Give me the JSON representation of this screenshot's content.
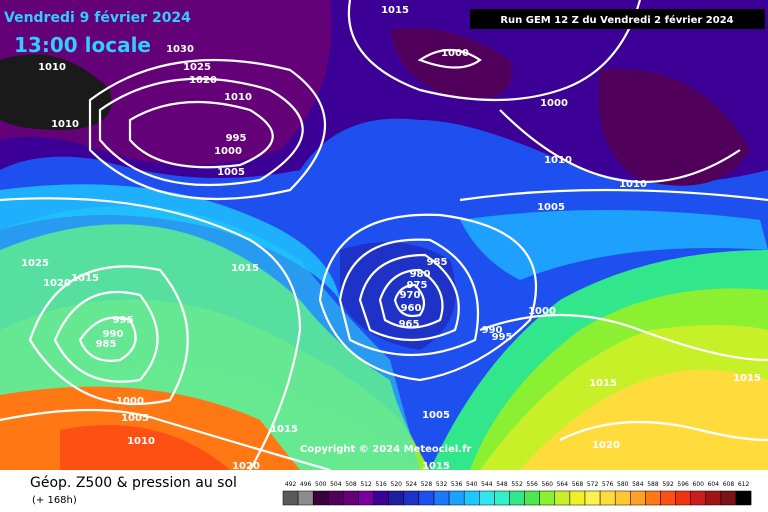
{
  "header": {
    "date": "Vendredi 9 février 2024",
    "time": "13:00 locale",
    "run": "Run GEM 12 Z du Vendredi 2 février 2024"
  },
  "isobar_labels": [
    "1015",
    "1030",
    "1025",
    "1020",
    "1010",
    "1010",
    "995",
    "1000",
    "1005",
    "1010",
    "1000",
    "1000",
    "1010",
    "1010",
    "1005",
    "1025",
    "1020",
    "1015",
    "1015",
    "995",
    "990",
    "985",
    "985",
    "980",
    "975",
    "970",
    "960",
    "965",
    "990",
    "995",
    "1000",
    "1015",
    "1015",
    "1000",
    "1005",
    "1010",
    "1015",
    "1005",
    "1020",
    "1020",
    "1015"
  ],
  "copyright": "Copyright © 2024 Meteociel.fr",
  "footer": {
    "title": "Géop. Z500 & pression au sol",
    "subtitle": "(+ 168h)"
  },
  "scale": {
    "labels": [
      "492",
      "496",
      "500",
      "504",
      "508",
      "512",
      "516",
      "520",
      "524",
      "528",
      "532",
      "536",
      "540",
      "544",
      "548",
      "552",
      "556",
      "560",
      "564",
      "568",
      "572",
      "576",
      "580",
      "584",
      "588",
      "592",
      "596",
      "600",
      "604",
      "608",
      "612"
    ],
    "colors": [
      "#5a5a5a",
      "#8c8c8c",
      "#3c003c",
      "#50005a",
      "#640078",
      "#7800a0",
      "#3c0096",
      "#1e1ea0",
      "#1e32c8",
      "#1e50f0",
      "#1e78ff",
      "#1ea0ff",
      "#1ec8ff",
      "#32e6f0",
      "#32f0c8",
      "#32e68c",
      "#50e650",
      "#8cf032",
      "#c8f028",
      "#f0f028",
      "#fff050",
      "#ffdc3c",
      "#ffc832",
      "#ffa028",
      "#ff7814",
      "#ff5014",
      "#f03214",
      "#c81e1e",
      "#a01414",
      "#781414",
      "#000000"
    ]
  }
}
